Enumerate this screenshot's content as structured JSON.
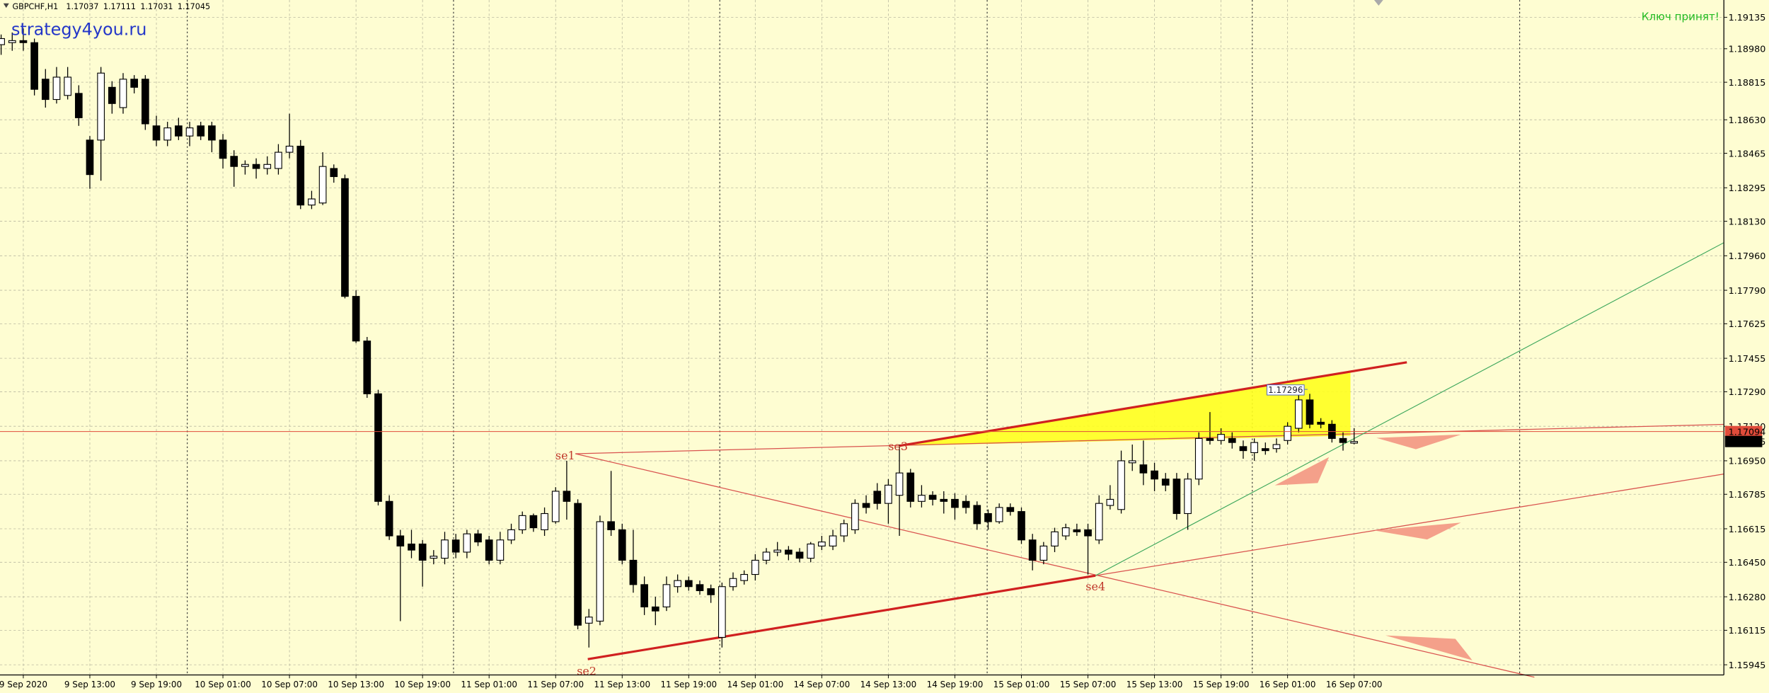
{
  "chart_data": {
    "type": "candlestick",
    "symbol": "GBPCHF,H1",
    "watermark": "strategy4you.ru",
    "status": "Ключ принят!",
    "categories": [
      null,
      null,
      "9 Sep 2020",
      null,
      null,
      null,
      null,
      null,
      "9 Sep 13:00",
      null,
      null,
      null,
      null,
      null,
      "9 Sep 19:00",
      null,
      null,
      null,
      null,
      null,
      "10 Sep 01:00",
      null,
      null,
      null,
      null,
      null,
      "10 Sep 07:00",
      null,
      null,
      null,
      null,
      null,
      "10 Sep 13:00",
      null,
      null,
      null,
      null,
      null,
      "10 Sep 19:00",
      null,
      null,
      null,
      null,
      null,
      "11 Sep 01:00",
      null,
      null,
      null,
      null,
      null,
      "11 Sep 07:00",
      null,
      null,
      null,
      null,
      null,
      "11 Sep 13:00",
      null,
      null,
      null,
      null,
      null,
      "11 Sep 19:00",
      null,
      null,
      null,
      null,
      null,
      "14 Sep 01:00",
      null,
      null,
      null,
      null,
      null,
      "14 Sep 07:00",
      null,
      null,
      null,
      null,
      null,
      "14 Sep 13:00",
      null,
      null,
      null,
      null,
      null,
      "14 Sep 19:00",
      null,
      null,
      null,
      null,
      null,
      "15 Sep 01:00",
      null,
      null,
      null,
      null,
      null,
      "15 Sep 07:00",
      null,
      null,
      null,
      null,
      null,
      "15 Sep 13:00",
      null,
      null,
      null,
      null,
      null,
      "15 Sep 19:00",
      null,
      null,
      null,
      null,
      null,
      "16 Sep 01:00",
      null,
      null,
      null,
      null,
      null,
      "16 Sep 07:00"
    ],
    "open": [
      1.19,
      1.1901,
      1.1902,
      1.1901,
      1.1883,
      1.1873,
      1.1875,
      1.1876,
      1.1853,
      1.1853,
      1.1879,
      1.1869,
      1.1883,
      1.1883,
      1.186,
      1.1853,
      1.186,
      1.1855,
      1.186,
      1.186,
      1.1853,
      1.1845,
      1.184,
      1.1841,
      1.1839,
      1.1839,
      1.1847,
      1.185,
      1.1821,
      1.1822,
      1.1839,
      1.1834,
      1.1776,
      1.1754,
      1.1728,
      1.1675,
      1.1658,
      1.1654,
      1.1654,
      1.1647,
      1.1647,
      1.1656,
      1.165,
      1.1659,
      1.1656,
      1.1646,
      1.1656,
      1.1661,
      1.1668,
      1.1661,
      1.1665,
      1.168,
      1.1674,
      1.1615,
      1.1616,
      1.1665,
      1.1661,
      1.1646,
      1.1634,
      1.1623,
      1.1623,
      1.1633,
      1.1636,
      1.1634,
      1.1632,
      1.1608,
      1.1633,
      1.1636,
      1.1639,
      1.1646,
      1.165,
      1.1651,
      1.165,
      1.1647,
      1.1653,
      1.1653,
      1.1658,
      1.1661,
      1.1674,
      1.168,
      1.1674,
      1.1678,
      1.1689,
      1.1675,
      1.1678,
      1.1676,
      1.1676,
      1.1675,
      1.1673,
      1.1669,
      1.1665,
      1.1672,
      1.167,
      1.1656,
      1.1646,
      1.1653,
      1.1658,
      1.1661,
      1.1661,
      1.1656,
      1.1673,
      1.1671,
      1.1694,
      1.1693,
      1.169,
      1.1686,
      1.1686,
      1.1669,
      1.1686,
      1.1706,
      1.1705,
      1.1706,
      1.1702,
      1.1699,
      1.1701,
      1.1701,
      1.1705,
      1.1711,
      1.1725,
      1.1714,
      1.1713,
      1.1706,
      1.17037
    ],
    "high": [
      1.1905,
      1.1906,
      1.1908,
      1.1903,
      1.1888,
      1.1889,
      1.1889,
      1.188,
      1.1855,
      1.1889,
      1.1882,
      1.1886,
      1.1885,
      1.1885,
      1.1865,
      1.1862,
      1.1864,
      1.1862,
      1.1862,
      1.1862,
      1.1856,
      1.1848,
      1.1843,
      1.1844,
      1.1845,
      1.1851,
      1.1866,
      1.1853,
      1.1828,
      1.1847,
      1.1841,
      1.1836,
      1.1779,
      1.1756,
      1.173,
      1.1678,
      1.1661,
      1.1661,
      1.1656,
      1.1651,
      1.166,
      1.1659,
      1.1661,
      1.1661,
      1.1658,
      1.166,
      1.1664,
      1.167,
      1.1669,
      1.1672,
      1.1682,
      1.1695,
      1.1676,
      1.1622,
      1.1668,
      1.169,
      1.1664,
      1.1661,
      1.1638,
      1.1628,
      1.1638,
      1.1639,
      1.1638,
      1.1636,
      1.1634,
      1.1635,
      1.164,
      1.1641,
      1.1649,
      1.1652,
      1.1655,
      1.1653,
      1.1652,
      1.1655,
      1.1658,
      1.1661,
      1.1666,
      1.1676,
      1.1678,
      1.1684,
      1.1686,
      1.1703,
      1.1691,
      1.1683,
      1.168,
      1.168,
      1.1679,
      1.1678,
      1.1675,
      1.1671,
      1.1674,
      1.1674,
      1.1672,
      1.1659,
      1.1655,
      1.1662,
      1.1664,
      1.1664,
      1.1664,
      1.1678,
      1.1683,
      1.17,
      1.1703,
      1.1705,
      1.1694,
      1.1689,
      1.1689,
      1.1689,
      1.1709,
      1.1719,
      1.1711,
      1.1709,
      1.1705,
      1.1706,
      1.1704,
      1.1706,
      1.1714,
      1.173,
      1.1728,
      1.1716,
      1.1715,
      1.1709,
      1.17111
    ],
    "low": [
      1.1895,
      1.1897,
      1.1897,
      1.1875,
      1.1869,
      1.1871,
      1.1873,
      1.186,
      1.1829,
      1.1833,
      1.1866,
      1.1866,
      1.1876,
      1.1858,
      1.185,
      1.185,
      1.1853,
      1.185,
      1.1853,
      1.1847,
      1.1839,
      1.183,
      1.1836,
      1.1834,
      1.1836,
      1.1836,
      1.1844,
      1.1819,
      1.1819,
      1.1821,
      1.1832,
      1.1775,
      1.1753,
      1.1726,
      1.1673,
      1.1656,
      1.1616,
      1.1647,
      1.1633,
      1.1644,
      1.1644,
      1.1647,
      1.1647,
      1.1653,
      1.1644,
      1.1644,
      1.1654,
      1.1659,
      1.166,
      1.1658,
      1.1664,
      1.1666,
      1.1612,
      1.1603,
      1.1614,
      1.1658,
      1.1644,
      1.163,
      1.1619,
      1.1614,
      1.1621,
      1.163,
      1.1631,
      1.1629,
      1.1625,
      1.1603,
      1.1631,
      1.1634,
      1.1636,
      1.1644,
      1.1648,
      1.1646,
      1.1645,
      1.1645,
      1.1651,
      1.1651,
      1.1655,
      1.1659,
      1.1669,
      1.1671,
      1.1664,
      1.1658,
      1.1672,
      1.1672,
      1.1673,
      1.1669,
      1.1666,
      1.1669,
      1.1661,
      1.1661,
      1.1664,
      1.1668,
      1.1654,
      1.1641,
      1.1644,
      1.165,
      1.1656,
      1.1658,
      1.1639,
      1.1654,
      1.1671,
      1.1669,
      1.169,
      1.1683,
      1.168,
      1.168,
      1.1666,
      1.1661,
      1.1683,
      1.1703,
      1.1703,
      1.1701,
      1.1696,
      1.1695,
      1.1698,
      1.1699,
      1.1703,
      1.1709,
      1.1711,
      1.1711,
      1.1704,
      1.17,
      1.17031
    ],
    "close": [
      1.1903,
      1.1902,
      1.1901,
      1.1878,
      1.1873,
      1.1884,
      1.1884,
      1.1864,
      1.1836,
      1.1886,
      1.1871,
      1.1883,
      1.1879,
      1.1861,
      1.1853,
      1.1859,
      1.1855,
      1.1859,
      1.1855,
      1.1853,
      1.1844,
      1.184,
      1.1841,
      1.1839,
      1.1841,
      1.1847,
      1.185,
      1.1821,
      1.1824,
      1.184,
      1.1835,
      1.1776,
      1.1754,
      1.1728,
      1.1675,
      1.1658,
      1.1653,
      1.1651,
      1.1646,
      1.1648,
      1.1656,
      1.165,
      1.1659,
      1.1655,
      1.1646,
      1.1656,
      1.1661,
      1.1668,
      1.1662,
      1.1669,
      1.168,
      1.1675,
      1.1614,
      1.1618,
      1.1665,
      1.1661,
      1.1646,
      1.1634,
      1.1623,
      1.1621,
      1.1634,
      1.1636,
      1.1633,
      1.1631,
      1.1629,
      1.1633,
      1.1637,
      1.1639,
      1.1646,
      1.165,
      1.1651,
      1.1649,
      1.1647,
      1.1654,
      1.1655,
      1.1658,
      1.1664,
      1.1674,
      1.1672,
      1.1674,
      1.1683,
      1.1689,
      1.1675,
      1.1678,
      1.1676,
      1.1675,
      1.1672,
      1.1672,
      1.1664,
      1.1665,
      1.1672,
      1.167,
      1.1656,
      1.1646,
      1.1653,
      1.166,
      1.1662,
      1.166,
      1.1658,
      1.1674,
      1.1676,
      1.1695,
      1.1695,
      1.1689,
      1.1686,
      1.1683,
      1.1669,
      1.1686,
      1.1706,
      1.1705,
      1.1708,
      1.1704,
      1.17,
      1.1704,
      1.17,
      1.1703,
      1.1712,
      1.1725,
      1.1713,
      1.1713,
      1.1706,
      1.1704,
      1.17045
    ],
    "ask": 1.17094,
    "price_box": "1.17296",
    "points": [
      "se1",
      "se2",
      "se3",
      "se4"
    ],
    "ylim": [
      1.15895,
      1.1922
    ],
    "yticks": [
      1.19135,
      {
        "value": 1.1898,
        "label": "1.18980"
      },
      1.18815,
      {
        "value": 1.1863,
        "label": "1.18630"
      },
      1.18465,
      1.18295,
      {
        "value": 1.1813,
        "label": "1.18130"
      },
      {
        "value": 1.1796,
        "label": "1.17960"
      },
      {
        "value": 1.1779,
        "label": "1.17790"
      },
      1.17625,
      1.17455,
      {
        "value": 1.1729,
        "label": "1.17290"
      },
      {
        "value": 1.1712,
        "label": "1.17120"
      },
      {
        "value": 1.1695,
        "label": "1.16950"
      },
      1.16785,
      1.16615,
      {
        "value": 1.1645,
        "label": "1.16450"
      },
      {
        "value": 1.1628,
        "label": "1.16280"
      },
      1.16115,
      1.15945
    ],
    "grid": true,
    "bull_color": "#ffffff",
    "bear_color": "#000000",
    "ask_color": "#e04b3a"
  }
}
